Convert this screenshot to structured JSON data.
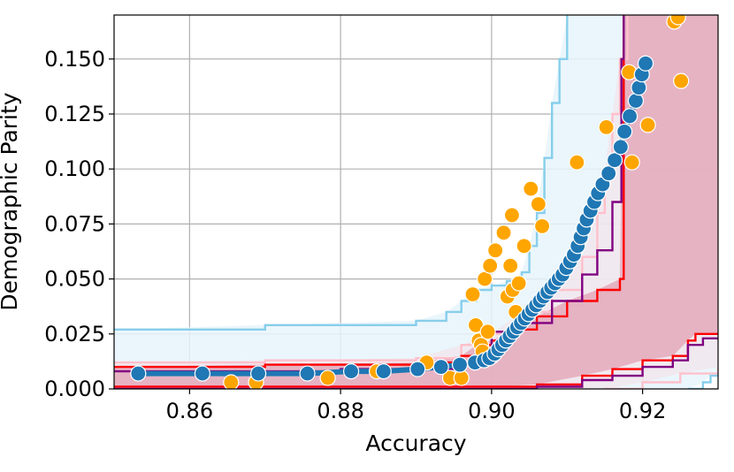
{
  "chart_data": {
    "type": "scatter",
    "xlabel": "Accuracy",
    "ylabel": "Demographic Parity",
    "xlim": [
      0.85,
      0.93
    ],
    "ylim": [
      0.0,
      0.17
    ],
    "xticks": [
      0.86,
      0.88,
      0.9,
      0.92
    ],
    "xtick_labels": [
      "0.86",
      "0.88",
      "0.90",
      "0.92"
    ],
    "yticks": [
      0.0,
      0.025,
      0.05,
      0.075,
      0.1,
      0.125,
      0.15
    ],
    "ytick_labels": [
      "0.000",
      "0.025",
      "0.050",
      "0.075",
      "0.100",
      "0.125",
      "0.150"
    ],
    "grid": true,
    "colors": {
      "blue_points": "#1f77b4",
      "orange_points": "#ffa500",
      "sky_band": "#87ceeb",
      "sky_fill": "#e6f5fb",
      "pink_band": "#ffc0cb",
      "red_band": "#ff0000",
      "red_fill": "#e4a9bb",
      "purple_band": "#800080",
      "grid": "#b0b0b0"
    },
    "bands": [
      {
        "id": "sky",
        "upper": [
          [
            0.85,
            0.027
          ],
          [
            0.87,
            0.029
          ],
          [
            0.89,
            0.031
          ],
          [
            0.894,
            0.035
          ],
          [
            0.896,
            0.04
          ],
          [
            0.898,
            0.045
          ],
          [
            0.9,
            0.047
          ],
          [
            0.902,
            0.049
          ],
          [
            0.904,
            0.053
          ],
          [
            0.905,
            0.065
          ],
          [
            0.906,
            0.08
          ],
          [
            0.907,
            0.105
          ],
          [
            0.908,
            0.13
          ],
          [
            0.909,
            0.15
          ],
          [
            0.91,
            0.17
          ]
        ],
        "lower": [
          [
            0.926,
            0.0
          ],
          [
            0.928,
            0.003
          ],
          [
            0.929,
            0.006
          ],
          [
            0.93,
            0.008
          ]
        ]
      },
      {
        "id": "pink",
        "upper": [
          [
            0.85,
            0.012
          ],
          [
            0.87,
            0.013
          ],
          [
            0.89,
            0.014
          ],
          [
            0.896,
            0.02
          ],
          [
            0.9,
            0.025
          ],
          [
            0.904,
            0.035
          ],
          [
            0.908,
            0.045
          ],
          [
            0.912,
            0.06
          ],
          [
            0.914,
            0.08
          ],
          [
            0.915,
            0.1
          ],
          [
            0.916,
            0.125
          ],
          [
            0.917,
            0.15
          ],
          [
            0.918,
            0.17
          ]
        ],
        "lower": [
          [
            0.915,
            0.0
          ],
          [
            0.92,
            0.003
          ],
          [
            0.925,
            0.007
          ],
          [
            0.93,
            0.01
          ]
        ]
      },
      {
        "id": "red",
        "upper": [
          [
            0.85,
            0.01
          ],
          [
            0.87,
            0.011
          ],
          [
            0.89,
            0.012
          ],
          [
            0.896,
            0.015
          ],
          [
            0.898,
            0.02
          ],
          [
            0.9,
            0.022
          ],
          [
            0.903,
            0.027
          ],
          [
            0.906,
            0.033
          ],
          [
            0.91,
            0.04
          ],
          [
            0.914,
            0.045
          ],
          [
            0.917,
            0.05
          ],
          [
            0.9175,
            0.17
          ]
        ],
        "lower": [
          [
            0.85,
            0.001
          ],
          [
            0.9,
            0.001
          ],
          [
            0.906,
            0.002
          ],
          [
            0.912,
            0.006
          ],
          [
            0.916,
            0.009
          ],
          [
            0.92,
            0.013
          ],
          [
            0.924,
            0.015
          ],
          [
            0.926,
            0.022
          ],
          [
            0.927,
            0.025
          ],
          [
            0.93,
            0.025
          ]
        ]
      },
      {
        "id": "purple",
        "upper": [
          [
            0.85,
            0.008
          ],
          [
            0.88,
            0.009
          ],
          [
            0.895,
            0.011
          ],
          [
            0.898,
            0.018
          ],
          [
            0.9,
            0.026
          ],
          [
            0.904,
            0.03
          ],
          [
            0.908,
            0.04
          ],
          [
            0.912,
            0.052
          ],
          [
            0.914,
            0.063
          ],
          [
            0.916,
            0.085
          ],
          [
            0.9172,
            0.15
          ],
          [
            0.9175,
            0.17
          ]
        ],
        "lower": [
          [
            0.85,
            0.0
          ],
          [
            0.9,
            0.0
          ],
          [
            0.906,
            0.001
          ],
          [
            0.912,
            0.004
          ],
          [
            0.916,
            0.006
          ],
          [
            0.92,
            0.01
          ],
          [
            0.924,
            0.013
          ],
          [
            0.926,
            0.02
          ],
          [
            0.928,
            0.023
          ],
          [
            0.93,
            0.023
          ]
        ]
      }
    ],
    "series": [
      {
        "color": "orange",
        "points": [
          [
            0.8655,
            0.003
          ],
          [
            0.8688,
            0.003
          ],
          [
            0.8783,
            0.005
          ],
          [
            0.8848,
            0.008
          ],
          [
            0.8914,
            0.012
          ],
          [
            0.8945,
            0.005
          ],
          [
            0.896,
            0.005
          ],
          [
            0.8975,
            0.043
          ],
          [
            0.8979,
            0.029
          ],
          [
            0.8983,
            0.022
          ],
          [
            0.8986,
            0.02
          ],
          [
            0.8988,
            0.017
          ],
          [
            0.8991,
            0.05
          ],
          [
            0.8998,
            0.056
          ],
          [
            0.9005,
            0.063
          ],
          [
            0.9016,
            0.071
          ],
          [
            0.9027,
            0.079
          ],
          [
            0.9025,
            0.056
          ],
          [
            0.9021,
            0.042
          ],
          [
            0.9028,
            0.045
          ],
          [
            0.9032,
            0.035
          ],
          [
            0.9036,
            0.048
          ],
          [
            0.9043,
            0.065
          ],
          [
            0.9052,
            0.091
          ],
          [
            0.9062,
            0.084
          ],
          [
            0.9067,
            0.074
          ],
          [
            0.9113,
            0.103
          ],
          [
            0.9152,
            0.119
          ],
          [
            0.9182,
            0.144
          ],
          [
            0.9186,
            0.103
          ],
          [
            0.9207,
            0.12
          ],
          [
            0.9242,
            0.167
          ],
          [
            0.9247,
            0.169
          ],
          [
            0.9251,
            0.14
          ],
          [
            0.8995,
            0.026
          ],
          [
            0.9001,
            0.015
          ]
        ]
      },
      {
        "color": "blue",
        "points": [
          [
            0.8532,
            0.007
          ],
          [
            0.8617,
            0.007
          ],
          [
            0.8691,
            0.007
          ],
          [
            0.8756,
            0.007
          ],
          [
            0.8814,
            0.008
          ],
          [
            0.8857,
            0.008
          ],
          [
            0.8902,
            0.009
          ],
          [
            0.8933,
            0.01
          ],
          [
            0.8958,
            0.011
          ],
          [
            0.8978,
            0.012
          ],
          [
            0.899,
            0.013
          ],
          [
            0.8997,
            0.014
          ],
          [
            0.9004,
            0.016
          ],
          [
            0.9009,
            0.018
          ],
          [
            0.9014,
            0.02
          ],
          [
            0.9019,
            0.022
          ],
          [
            0.9024,
            0.024
          ],
          [
            0.9029,
            0.026
          ],
          [
            0.9034,
            0.028
          ],
          [
            0.9039,
            0.03
          ],
          [
            0.9044,
            0.032
          ],
          [
            0.9049,
            0.034
          ],
          [
            0.9054,
            0.036
          ],
          [
            0.9059,
            0.038
          ],
          [
            0.9064,
            0.04
          ],
          [
            0.9069,
            0.042
          ],
          [
            0.9074,
            0.044
          ],
          [
            0.9079,
            0.046
          ],
          [
            0.9084,
            0.048
          ],
          [
            0.9089,
            0.05
          ],
          [
            0.9094,
            0.052
          ],
          [
            0.9099,
            0.055
          ],
          [
            0.9104,
            0.058
          ],
          [
            0.9109,
            0.061
          ],
          [
            0.9114,
            0.065
          ],
          [
            0.9118,
            0.069
          ],
          [
            0.9122,
            0.073
          ],
          [
            0.9126,
            0.077
          ],
          [
            0.9131,
            0.081
          ],
          [
            0.9136,
            0.085
          ],
          [
            0.9141,
            0.089
          ],
          [
            0.9147,
            0.093
          ],
          [
            0.9155,
            0.098
          ],
          [
            0.9163,
            0.104
          ],
          [
            0.9171,
            0.11
          ],
          [
            0.9176,
            0.117
          ],
          [
            0.9183,
            0.124
          ],
          [
            0.9191,
            0.131
          ],
          [
            0.9195,
            0.137
          ],
          [
            0.9199,
            0.143
          ],
          [
            0.9204,
            0.148
          ]
        ]
      }
    ]
  }
}
